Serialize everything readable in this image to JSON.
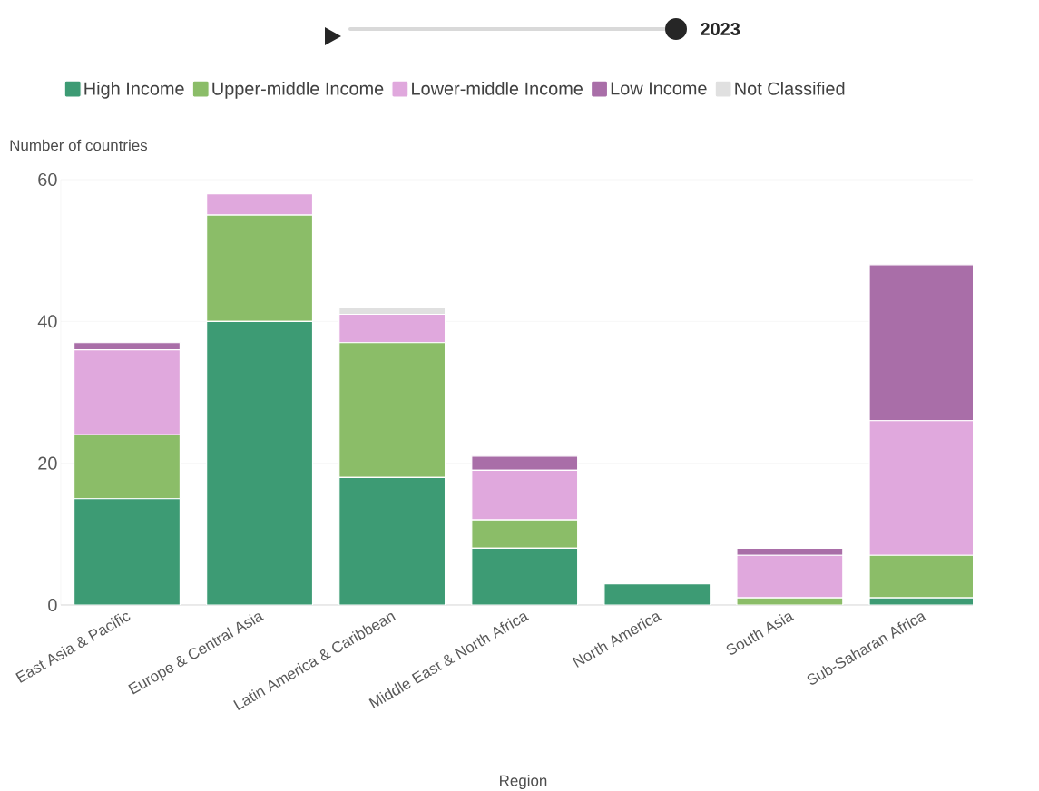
{
  "chart_data": {
    "type": "bar",
    "subtitle": "2023",
    "ylabel": "Number of countries",
    "xlabel": "Region",
    "categories": [
      "East Asia & Pacific",
      "Europe & Central Asia",
      "Latin America & Caribbean",
      "Middle East & North Africa",
      "North America",
      "South Asia",
      "Sub-Saharan Africa"
    ],
    "stacked": true,
    "series": [
      {
        "name": "High Income",
        "color": "#3d9b74",
        "values": [
          15,
          40,
          18,
          8,
          3,
          0,
          1
        ]
      },
      {
        "name": "Upper-middle Income",
        "color": "#8bbd68",
        "values": [
          9,
          15,
          19,
          4,
          0,
          1,
          6
        ]
      },
      {
        "name": "Lower-middle Income",
        "color": "#e0a8dd",
        "values": [
          12,
          3,
          4,
          7,
          0,
          6,
          19
        ]
      },
      {
        "name": "Low Income",
        "color": "#a96ea8",
        "values": [
          1,
          0,
          0,
          2,
          0,
          1,
          22
        ]
      },
      {
        "name": "Not Classified",
        "color": "#e0e0e0",
        "values": [
          0,
          0,
          1,
          0,
          0,
          0,
          0
        ]
      }
    ],
    "ylim": [
      0,
      60
    ],
    "yticks": [
      0,
      20,
      40,
      60
    ],
    "grid": "y",
    "legend": "top"
  }
}
